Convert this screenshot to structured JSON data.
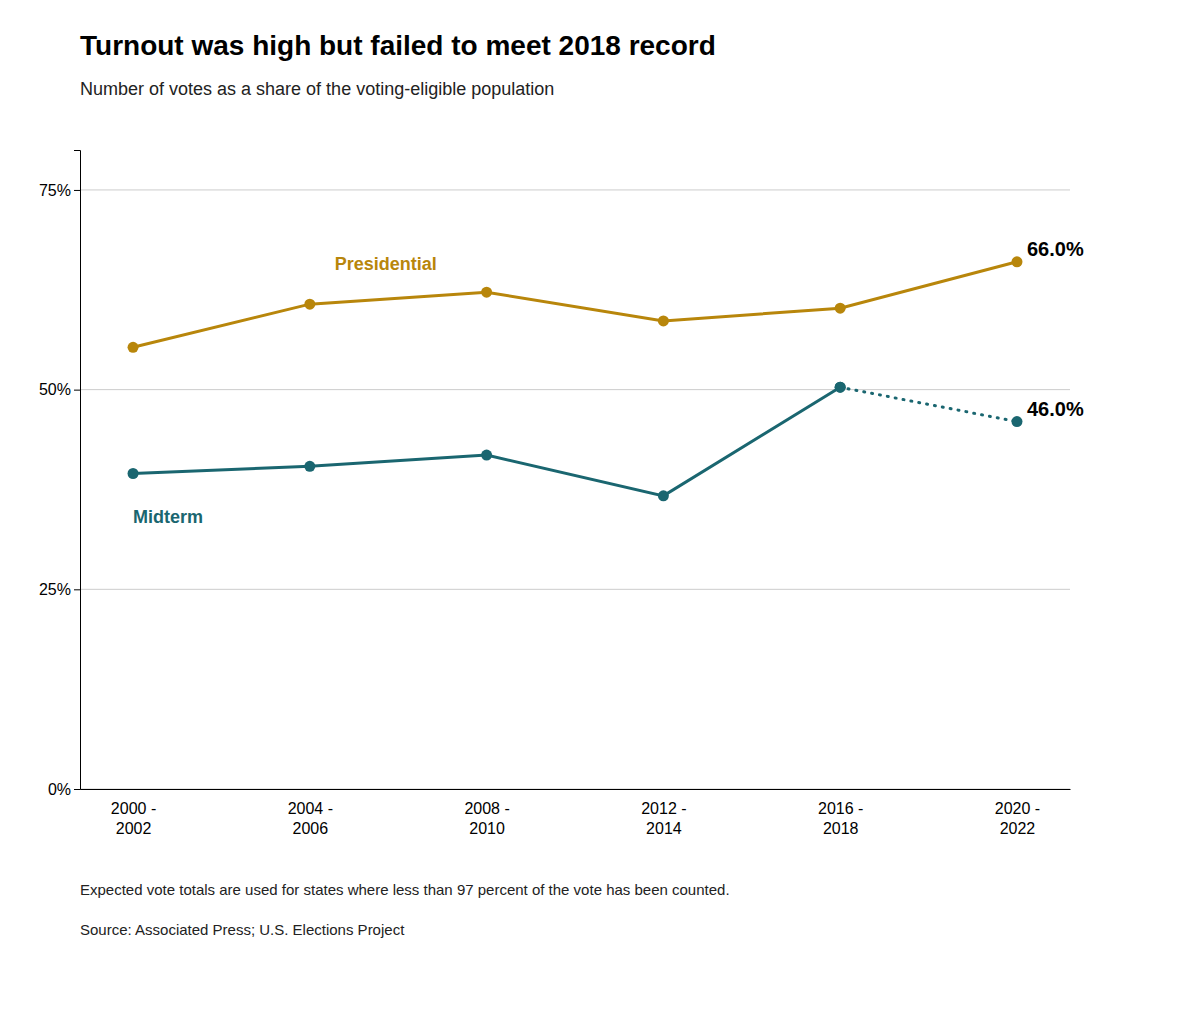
{
  "chart_data": {
    "type": "line",
    "title": "Turnout was high but failed to meet 2018 record",
    "subtitle": "Number of votes as a share of the voting-eligible population",
    "footnote": "Expected vote totals are used for states where less than 97 percent of the vote has been counted.",
    "source": "Source: Associated Press; U.S. Elections Project",
    "categories": [
      "2000 -\n2002",
      "2004 -\n2006",
      "2008 -\n2010",
      "2012 -\n2014",
      "2016 -\n2018",
      "2020 -\n2022"
    ],
    "series": [
      {
        "name": "Presidential",
        "color": "#B8860B",
        "marker": "circle",
        "line_style": "solid",
        "values": [
          55.3,
          60.7,
          62.2,
          58.6,
          60.2,
          66.0
        ],
        "value_labels": [
          null,
          null,
          null,
          null,
          null,
          "66.0%"
        ]
      },
      {
        "name": "Midterm",
        "color": "#1A6670",
        "marker": "circle",
        "line_style": "solid",
        "values": [
          39.5,
          40.4,
          41.8,
          36.7,
          50.3,
          null
        ]
      },
      {
        "color": "#1A6670",
        "marker": "circle",
        "line_style": "dotted",
        "values": [
          null,
          null,
          null,
          null,
          50.3,
          46.0
        ],
        "value_labels": [
          null,
          null,
          null,
          null,
          null,
          "46.0%"
        ]
      }
    ],
    "ylim": [
      0,
      80
    ],
    "yticks": [
      {
        "value": 0,
        "label": "0%"
      },
      {
        "value": 25,
        "label": "25%"
      },
      {
        "value": 50,
        "label": "50%"
      },
      {
        "value": 75,
        "label": "75%"
      }
    ],
    "grid": true
  }
}
